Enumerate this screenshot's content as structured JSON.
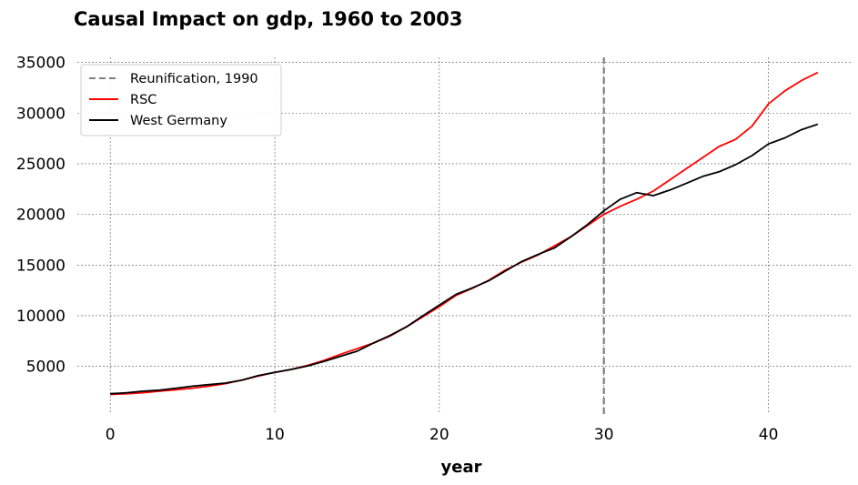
{
  "chart_data": {
    "type": "line",
    "title": "Causal Impact on gdp, 1960 to 2003",
    "xlabel": "year",
    "ylabel": "",
    "xlim": [
      -2,
      45
    ],
    "ylim": [
      300,
      35500
    ],
    "xticks": [
      0,
      10,
      20,
      30,
      40
    ],
    "yticks": [
      5000,
      10000,
      15000,
      20000,
      25000,
      30000,
      35000
    ],
    "grid": true,
    "legend_position": "top-left",
    "x": [
      0,
      1,
      2,
      3,
      4,
      5,
      6,
      7,
      8,
      9,
      10,
      11,
      12,
      13,
      14,
      15,
      16,
      17,
      18,
      19,
      20,
      21,
      22,
      23,
      24,
      25,
      26,
      27,
      28,
      29,
      30,
      31,
      32,
      33,
      34,
      35,
      36,
      37,
      38,
      39,
      40,
      41,
      42,
      43
    ],
    "series": [
      {
        "name": "RSC",
        "color": "#ff0000",
        "values": [
          2230,
          2300,
          2400,
          2550,
          2700,
          2850,
          3050,
          3300,
          3650,
          4050,
          4400,
          4700,
          5100,
          5600,
          6200,
          6750,
          7300,
          8000,
          8900,
          9900,
          10900,
          12000,
          12700,
          13500,
          14500,
          15300,
          16000,
          16900,
          17800,
          18900,
          20000,
          20800,
          21500,
          22300,
          23400,
          24500,
          25600,
          26700,
          27400,
          28700,
          30900,
          32200,
          33200,
          34000
        ]
      },
      {
        "name": "West Germany",
        "color": "#000000",
        "values": [
          2300,
          2400,
          2550,
          2650,
          2850,
          3050,
          3200,
          3350,
          3650,
          4100,
          4400,
          4700,
          5050,
          5500,
          6000,
          6500,
          7300,
          8050,
          8900,
          10000,
          11050,
          12100,
          12750,
          13450,
          14400,
          15350,
          16050,
          16700,
          17800,
          19000,
          20350,
          21500,
          22150,
          21850,
          22400,
          23050,
          23750,
          24200,
          24900,
          25800,
          26950,
          27550,
          28350,
          28900
        ]
      }
    ],
    "annotations": [
      {
        "type": "vline",
        "x": 30,
        "label": "Reunification, 1990",
        "color": "#808080",
        "style": "dashed"
      }
    ]
  }
}
